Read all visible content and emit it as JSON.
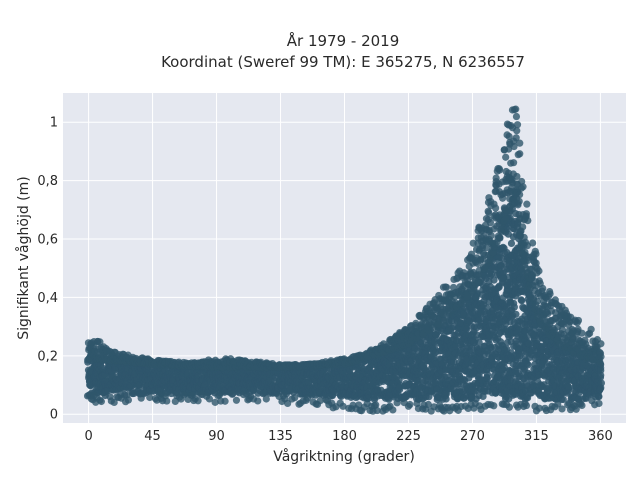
{
  "chart_data": {
    "type": "scatter",
    "title": "År 1979 - 2019",
    "subtitle": "Koordinat (Sweref 99 TM): E 365275, N 6236557",
    "xlabel": "Vågriktning (grader)",
    "ylabel": "Signifikant våghöjd (m)",
    "xlim": [
      -18,
      378
    ],
    "ylim": [
      -0.03,
      1.1
    ],
    "x_ticks": [
      0,
      45,
      90,
      135,
      180,
      225,
      270,
      315,
      360
    ],
    "x_tick_labels": [
      "0",
      "45",
      "90",
      "135",
      "180",
      "225",
      "270",
      "315",
      "360"
    ],
    "y_ticks": [
      0,
      0.2,
      0.4,
      0.6,
      0.8,
      1
    ],
    "y_tick_labels": [
      "0",
      "0,2",
      "0,4",
      "0,6",
      "0,8",
      "1"
    ],
    "grid": true,
    "legend": "none",
    "point_color": "#2f566c",
    "plot_background": "#e5e8f0",
    "series": [
      {
        "envelope": {
          "x": [
            0,
            5,
            15,
            30,
            45,
            60,
            75,
            90,
            105,
            120,
            135,
            150,
            165,
            180,
            195,
            210,
            225,
            235,
            245,
            255,
            262,
            270,
            278,
            285,
            290,
            294,
            297,
            300,
            303,
            306,
            310,
            315,
            320,
            330,
            340,
            350,
            360
          ],
          "y_max": [
            0.25,
            0.26,
            0.22,
            0.2,
            0.19,
            0.18,
            0.18,
            0.19,
            0.19,
            0.18,
            0.17,
            0.17,
            0.18,
            0.19,
            0.21,
            0.25,
            0.3,
            0.35,
            0.42,
            0.45,
            0.5,
            0.58,
            0.68,
            0.8,
            0.9,
            0.98,
            1.05,
            1.05,
            0.98,
            0.85,
            0.68,
            0.55,
            0.45,
            0.38,
            0.35,
            0.3,
            0.27
          ],
          "y_min": [
            0.04,
            0.04,
            0.04,
            0.04,
            0.04,
            0.04,
            0.04,
            0.04,
            0.04,
            0.04,
            0.04,
            0.03,
            0.02,
            0.02,
            0.01,
            0.01,
            0.01,
            0.01,
            0.01,
            0.01,
            0.01,
            0.01,
            0.01,
            0.01,
            0.01,
            0.01,
            0.01,
            0.01,
            0.01,
            0.01,
            0.01,
            0.01,
            0.01,
            0.01,
            0.01,
            0.02,
            0.03
          ]
        },
        "core": {
          "x": [
            0,
            45,
            90,
            135,
            180,
            200,
            225,
            250,
            270,
            285,
            295,
            300,
            305,
            315,
            330,
            345,
            360
          ],
          "y_top": [
            0.19,
            0.17,
            0.16,
            0.16,
            0.17,
            0.2,
            0.24,
            0.32,
            0.42,
            0.55,
            0.7,
            0.72,
            0.55,
            0.33,
            0.24,
            0.2,
            0.18
          ],
          "y_bot": [
            0.06,
            0.07,
            0.07,
            0.07,
            0.06,
            0.05,
            0.05,
            0.05,
            0.05,
            0.05,
            0.05,
            0.05,
            0.05,
            0.05,
            0.05,
            0.05,
            0.06
          ]
        }
      }
    ]
  }
}
